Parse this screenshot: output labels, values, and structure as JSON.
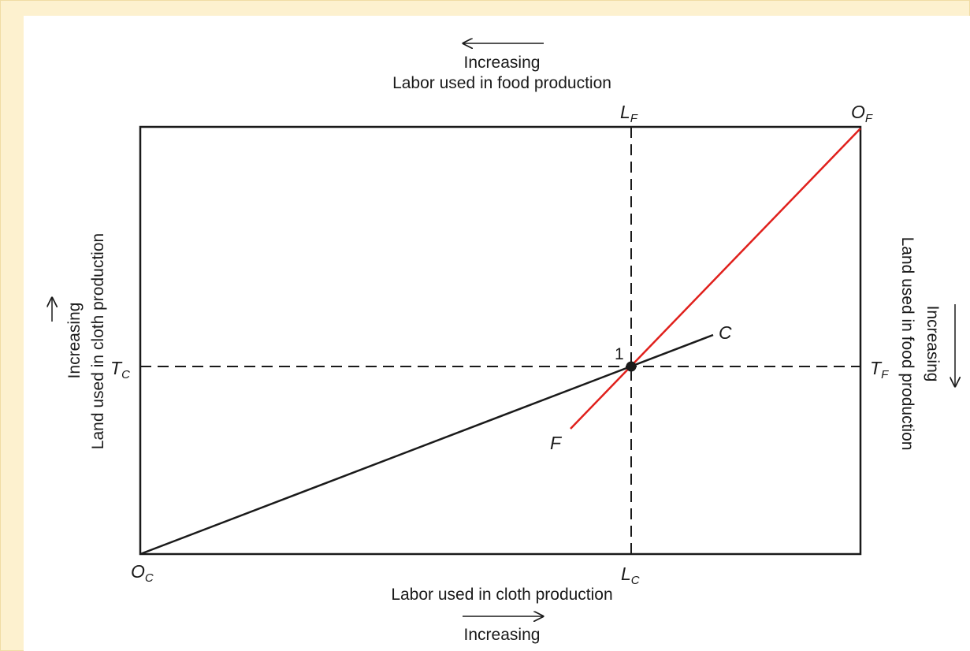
{
  "top": {
    "arrow_label": "Increasing",
    "axis_label": "Labor used in food production"
  },
  "bottom": {
    "axis_label": "Labor used in cloth production",
    "arrow_label": "Increasing"
  },
  "left": {
    "arrow_label": "Increasing",
    "axis_label": "Land used in cloth production"
  },
  "right": {
    "arrow_label": "Increasing",
    "axis_label": "Land used in food production"
  },
  "points": {
    "O_C": {
      "main": "O",
      "sub": "C"
    },
    "O_F": {
      "main": "O",
      "sub": "F"
    },
    "L_F": {
      "main": "L",
      "sub": "F"
    },
    "L_C": {
      "main": "L",
      "sub": "C"
    },
    "T_C": {
      "main": "T",
      "sub": "C"
    },
    "T_F": {
      "main": "T",
      "sub": "F"
    }
  },
  "curves": {
    "cloth": "C",
    "food": "F"
  },
  "equilibrium": "1"
}
